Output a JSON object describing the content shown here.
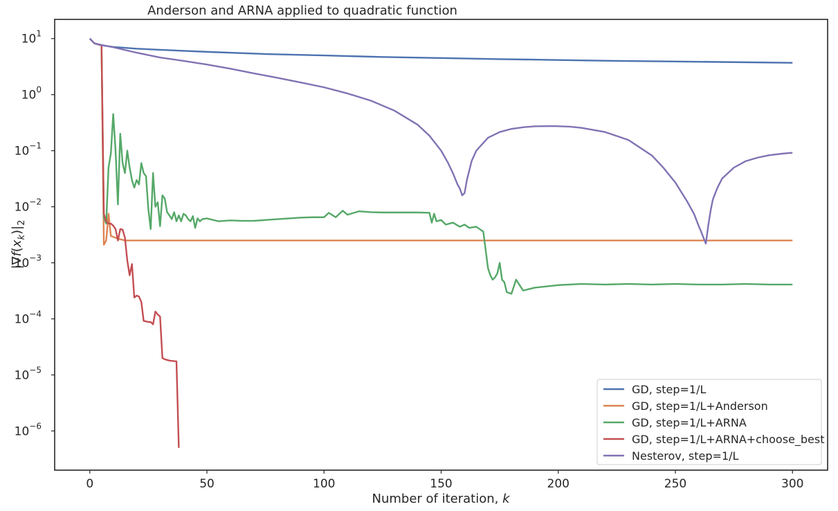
{
  "chart_data": {
    "type": "line",
    "title": "Anderson and ARNA applied to quadratic function",
    "xlabel": "Number of iteration, k",
    "ylabel": "|∇f(x_k)|_2",
    "xlim": [
      -15,
      315
    ],
    "ylim": [
      2e-07,
      22
    ],
    "yscale": "log",
    "grid": false,
    "legend_position": "lower-right",
    "xticks": [
      {
        "value": 0,
        "label": "0"
      },
      {
        "value": 50,
        "label": "50"
      },
      {
        "value": 100,
        "label": "100"
      },
      {
        "value": 150,
        "label": "150"
      },
      {
        "value": 200,
        "label": "200"
      },
      {
        "value": 250,
        "label": "250"
      },
      {
        "value": 300,
        "label": "300"
      }
    ],
    "yticks": [
      {
        "value": 10,
        "base": "10",
        "exp": "1"
      },
      {
        "value": 1,
        "base": "10",
        "exp": "0"
      },
      {
        "value": 0.1,
        "base": "10",
        "exp": "−1"
      },
      {
        "value": 0.01,
        "base": "10",
        "exp": "−2"
      },
      {
        "value": 0.001,
        "base": "10",
        "exp": "−3"
      },
      {
        "value": 0.0001,
        "base": "10",
        "exp": "−4"
      },
      {
        "value": 1e-05,
        "base": "10",
        "exp": "−5"
      },
      {
        "value": 1e-06,
        "base": "10",
        "exp": "−6"
      }
    ],
    "series": [
      {
        "name": "GD, step=1/L",
        "color": "#4c72b0",
        "x": [
          0,
          2,
          5,
          10,
          20,
          30,
          50,
          75,
          100,
          125,
          150,
          175,
          200,
          225,
          250,
          275,
          300
        ],
        "y": [
          10,
          8.2,
          7.6,
          7.1,
          6.6,
          6.3,
          5.8,
          5.3,
          5.0,
          4.7,
          4.5,
          4.3,
          4.15,
          4.0,
          3.9,
          3.8,
          3.7
        ]
      },
      {
        "name": "GD, step=1/L+Anderson",
        "color": "#dd8452",
        "x": [
          0,
          2,
          5,
          6,
          7,
          8,
          9,
          10,
          12,
          15,
          20,
          50,
          100,
          150,
          200,
          250,
          300
        ],
        "y": [
          10,
          8.2,
          7.6,
          0.0021,
          0.0025,
          0.0075,
          0.003,
          0.0029,
          0.0027,
          0.0025,
          0.0025,
          0.0025,
          0.0025,
          0.0025,
          0.0025,
          0.0025,
          0.0025
        ]
      },
      {
        "name": "GD, step=1/L+ARNA",
        "color": "#55a868",
        "x": [
          0,
          2,
          5,
          6,
          7,
          8,
          9,
          10,
          11,
          12,
          13,
          14,
          15,
          16,
          17,
          18,
          19,
          20,
          21,
          22,
          23,
          24,
          25,
          26,
          27,
          28,
          29,
          30,
          31,
          32,
          33,
          34,
          35,
          36,
          37,
          38,
          39,
          40,
          41,
          42,
          43,
          44,
          45,
          46,
          47,
          48,
          50,
          55,
          60,
          65,
          70,
          75,
          80,
          85,
          90,
          95,
          100,
          102,
          105,
          108,
          110,
          115,
          120,
          125,
          130,
          135,
          140,
          145,
          146,
          147,
          148,
          150,
          152,
          155,
          158,
          160,
          162,
          165,
          168,
          170,
          171,
          172,
          173,
          174,
          175,
          176,
          177,
          178,
          180,
          182,
          185,
          190,
          200,
          210,
          220,
          230,
          240,
          250,
          260,
          270,
          280,
          290,
          300
        ],
        "y": [
          10,
          8.2,
          7.6,
          0.0065,
          0.005,
          0.05,
          0.09,
          0.45,
          0.1,
          0.011,
          0.2,
          0.06,
          0.04,
          0.1,
          0.05,
          0.03,
          0.022,
          0.03,
          0.025,
          0.06,
          0.04,
          0.035,
          0.009,
          0.004,
          0.04,
          0.01,
          0.012,
          0.0045,
          0.016,
          0.014,
          0.008,
          0.007,
          0.006,
          0.008,
          0.0055,
          0.007,
          0.0055,
          0.0075,
          0.007,
          0.006,
          0.0055,
          0.0068,
          0.0042,
          0.0062,
          0.0055,
          0.006,
          0.0062,
          0.0055,
          0.0057,
          0.0056,
          0.0056,
          0.0058,
          0.006,
          0.0062,
          0.0064,
          0.0065,
          0.0065,
          0.0078,
          0.0065,
          0.0085,
          0.0072,
          0.0083,
          0.008,
          0.0079,
          0.0079,
          0.0079,
          0.0079,
          0.0078,
          0.0052,
          0.0075,
          0.0055,
          0.0058,
          0.0048,
          0.0052,
          0.0044,
          0.0048,
          0.0042,
          0.0044,
          0.0036,
          0.0008,
          0.0006,
          0.0005,
          0.00055,
          0.00065,
          0.001,
          0.0005,
          0.00045,
          0.0003,
          0.00028,
          0.0005,
          0.00032,
          0.00036,
          0.0004,
          0.00042,
          0.00041,
          0.00042,
          0.00041,
          0.00042,
          0.00041,
          0.00041,
          0.00042,
          0.00041,
          0.00041
        ]
      },
      {
        "name": "GD, step=1/L+ARNA+choose_best",
        "color": "#c44e52",
        "x": [
          0,
          2,
          5,
          6,
          7,
          8,
          9,
          10,
          11,
          12,
          13,
          14,
          15,
          16,
          17,
          18,
          19,
          20,
          21,
          22,
          23,
          24,
          25,
          26,
          27,
          28,
          29,
          30,
          31,
          32,
          33,
          34,
          35,
          36,
          37,
          38
        ],
        "y": [
          10,
          8.2,
          7.6,
          0.0075,
          0.0055,
          0.005,
          0.005,
          0.0046,
          0.004,
          0.0025,
          0.004,
          0.0039,
          0.0028,
          0.0011,
          0.0006,
          0.00095,
          0.00024,
          0.00026,
          0.00025,
          0.0002,
          9.2e-05,
          9e-05,
          8.8e-05,
          8.8e-05,
          8e-05,
          0.000135,
          0.00012,
          0.00011,
          2e-05,
          1.9e-05,
          1.85e-05,
          1.8e-05,
          1.78e-05,
          1.76e-05,
          1.75e-05,
          5e-07
        ]
      },
      {
        "name": "Nesterov, step=1/L",
        "color": "#8172b3",
        "x": [
          0,
          2,
          5,
          10,
          20,
          30,
          40,
          50,
          60,
          70,
          80,
          90,
          100,
          110,
          120,
          130,
          140,
          145,
          150,
          153,
          155,
          157,
          158,
          159,
          160,
          161,
          163,
          165,
          170,
          175,
          180,
          185,
          190,
          198,
          205,
          210,
          220,
          230,
          240,
          245,
          250,
          255,
          258,
          260,
          261,
          262,
          263,
          264,
          265,
          266,
          268,
          270,
          275,
          280,
          285,
          290,
          295,
          300
        ],
        "y": [
          10,
          8.2,
          7.7,
          7.0,
          5.6,
          4.6,
          4.0,
          3.45,
          2.9,
          2.4,
          2.0,
          1.65,
          1.35,
          1.05,
          0.78,
          0.52,
          0.29,
          0.185,
          0.1,
          0.06,
          0.04,
          0.025,
          0.021,
          0.016,
          0.0175,
          0.03,
          0.065,
          0.1,
          0.17,
          0.215,
          0.245,
          0.262,
          0.272,
          0.275,
          0.268,
          0.255,
          0.215,
          0.155,
          0.082,
          0.049,
          0.027,
          0.0125,
          0.0074,
          0.0045,
          0.0036,
          0.0028,
          0.0022,
          0.0045,
          0.0083,
          0.0135,
          0.022,
          0.032,
          0.05,
          0.065,
          0.075,
          0.083,
          0.088,
          0.092
        ]
      }
    ]
  }
}
